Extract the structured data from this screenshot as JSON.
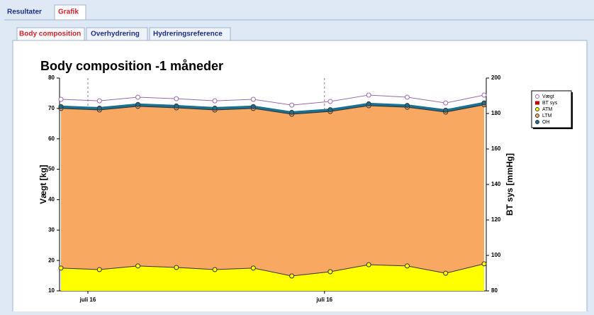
{
  "tabs": [
    "Resultater",
    "Grafik"
  ],
  "subtabs": [
    "Body composition",
    "Overhydrering",
    "Hydreringsreference"
  ],
  "chart_data": {
    "type": "area",
    "title": "Body composition -1 måneder",
    "y_label": "Vægt [kg]",
    "y2_label": "BT sys [mmHg]",
    "categories": [
      null,
      null,
      null,
      null,
      null,
      null,
      null,
      null,
      null,
      null,
      null,
      null
    ],
    "xticks": [
      {
        "value": 0.7,
        "label": "juli 16"
      },
      {
        "value": 6.85,
        "label": "juli 16"
      }
    ],
    "ylim": [
      10,
      80
    ],
    "yticks": [
      10,
      20,
      30,
      40,
      50,
      60,
      70,
      80
    ],
    "y2lim": [
      80,
      200
    ],
    "y2ticks": [
      80,
      100,
      120,
      140,
      160,
      180,
      200
    ],
    "legend": "right",
    "series": [
      {
        "name": "Vægt",
        "color": "#9a6aae",
        "values": [
          73.0,
          72.5,
          73.7,
          73.2,
          72.5,
          73.0,
          71.1,
          72.3,
          74.4,
          73.7,
          71.8,
          74.4
        ]
      },
      {
        "name": "BT sys",
        "color": "#c00000",
        "axis": "y2",
        "values": [
          null,
          null,
          null,
          null,
          null,
          null,
          null,
          null,
          null,
          null,
          null,
          null
        ]
      },
      {
        "name": "ATM",
        "color": "#ffff00",
        "values": [
          17.5,
          17.0,
          18.2,
          17.7,
          17.0,
          17.5,
          14.9,
          16.3,
          18.6,
          18.2,
          15.8,
          18.9
        ]
      },
      {
        "name": "LTM",
        "color": "#f8a860",
        "values": [
          70.0,
          69.5,
          70.7,
          70.2,
          69.5,
          70.0,
          68.1,
          69.0,
          70.9,
          70.4,
          68.8,
          71.2
        ]
      },
      {
        "name": "OH",
        "color": "#1b6f8f",
        "values": [
          70.6,
          70.1,
          71.3,
          70.8,
          70.1,
          70.6,
          68.7,
          69.6,
          71.5,
          71.0,
          69.4,
          71.8
        ]
      }
    ]
  }
}
